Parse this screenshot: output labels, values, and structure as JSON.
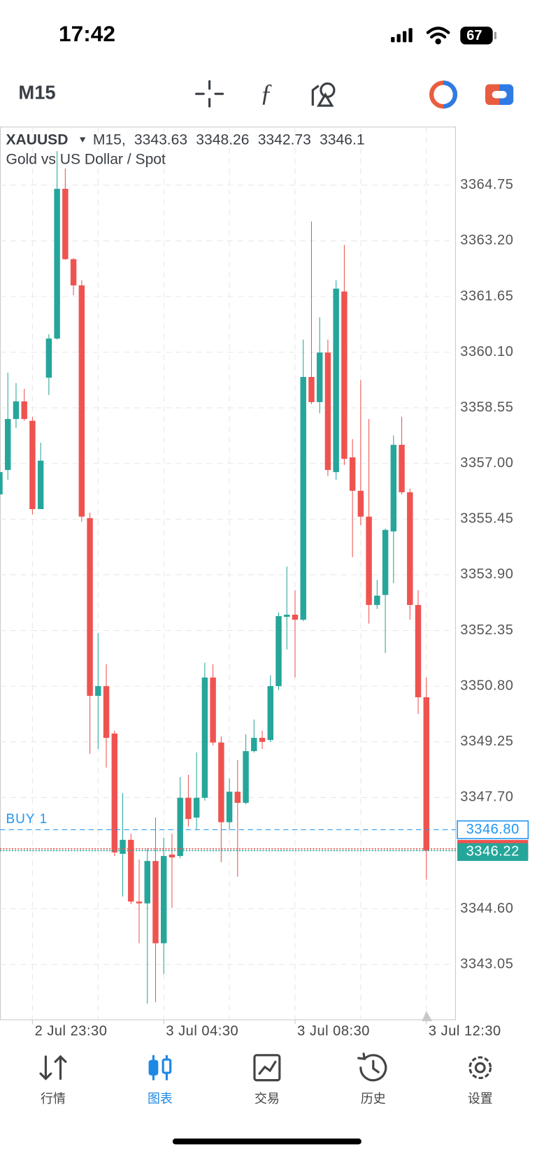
{
  "status_bar": {
    "time": "17:42",
    "battery": "67"
  },
  "toolbar": {
    "timeframe": "M15"
  },
  "chart_data": {
    "type": "candlestick",
    "legend": {
      "symbol": "XAUUSD",
      "timeframe_label": "M15,",
      "ohlc": [
        3343.63,
        3348.26,
        3342.73,
        3346.1
      ],
      "description": "Gold vs US Dollar / Spot"
    },
    "categories": [
      null,
      null,
      null,
      null,
      "2 Jul 23:30",
      null,
      null,
      null,
      null,
      null,
      null,
      null,
      null,
      null,
      null,
      null,
      null,
      null,
      null,
      null,
      "3 Jul 04:30",
      null,
      null,
      null,
      null,
      null,
      null,
      null,
      null,
      null,
      null,
      null,
      null,
      null,
      null,
      null,
      "3 Jul 08:30",
      null,
      null,
      null,
      null,
      null,
      null,
      null,
      null,
      null,
      null,
      null,
      null,
      null,
      null,
      null,
      "3 Jul 12:30"
    ],
    "open": [
      3356.14,
      3356.82,
      3358.24,
      3358.73,
      3358.19,
      3355.73,
      3359.39,
      3360.48,
      3364.65,
      3362.69,
      3361.96,
      3355.48,
      3350.53,
      3350.8,
      3349.48,
      3346.13,
      3346.52,
      3344.8,
      3344.75,
      3345.93,
      3343.64,
      3346.11,
      3346.07,
      3347.69,
      3347.14,
      3347.69,
      3351.04,
      3349.23,
      3347.01,
      3347.86,
      3347.55,
      3348.99,
      3349.36,
      3349.3,
      3350.8,
      3352.73,
      3352.79,
      3352.65,
      3359.41,
      3358.71,
      3360.09,
      3356.76,
      3361.79,
      3357.17,
      3356.24,
      3355.52,
      3353.06,
      3353.34,
      3355.11,
      3357.52,
      3356.2,
      3353.06,
      3350.49
    ],
    "high": [
      3356.96,
      3359.53,
      3359.24,
      3359.08,
      3358.3,
      3357.58,
      3360.6,
      3365.7,
      3365.22,
      3362.72,
      3362.1,
      3355.63,
      3352.28,
      3351.41,
      3349.56,
      3347.82,
      3346.69,
      3345.97,
      3346.28,
      3347.14,
      3346.58,
      3346.69,
      3348.27,
      3348.33,
      3348.95,
      3351.45,
      3351.41,
      3349.4,
      3348.23,
      3348.74,
      3349.46,
      3349.87,
      3349.56,
      3351.1,
      3352.85,
      3354.13,
      3353.47,
      3360.45,
      3363.74,
      3361.07,
      3360.45,
      3362.1,
      3363.09,
      3357.68,
      3359.32,
      3358.24,
      3353.76,
      3355.19,
      3357.78,
      3358.3,
      3356.3,
      3353.47,
      3351.04
    ],
    "low": [
      3356.0,
      3356.55,
      3357.99,
      3358.19,
      3355.58,
      3355.73,
      3358.91,
      3360.45,
      3362.67,
      3361.69,
      3355.38,
      3348.91,
      3349.05,
      3348.53,
      3346.07,
      3344.94,
      3344.73,
      3343.64,
      3341.96,
      3342.0,
      3342.78,
      3344.63,
      3346.01,
      3346.89,
      3346.79,
      3347.61,
      3349.15,
      3345.9,
      3346.79,
      3345.49,
      3347.51,
      3348.95,
      3349.05,
      3349.25,
      3350.69,
      3351.82,
      3351.04,
      3352.61,
      3358.65,
      3358.4,
      3356.65,
      3356.55,
      3356.96,
      3354.39,
      3355.28,
      3352.54,
      3352.95,
      3351.72,
      3353.67,
      3356.14,
      3352.65,
      3350.02,
      3345.41
    ],
    "close": [
      3356.76,
      3358.24,
      3358.73,
      3358.24,
      3355.73,
      3357.08,
      3360.48,
      3364.65,
      3362.69,
      3361.96,
      3355.52,
      3350.53,
      3350.8,
      3349.36,
      3346.17,
      3346.52,
      3344.8,
      3344.75,
      3345.93,
      3343.64,
      3346.07,
      3346.03,
      3347.69,
      3347.1,
      3347.69,
      3351.04,
      3349.23,
      3347.01,
      3347.86,
      3347.55,
      3348.99,
      3349.36,
      3349.25,
      3350.8,
      3352.75,
      3352.79,
      3352.65,
      3359.41,
      3358.71,
      3360.09,
      3356.82,
      3361.87,
      3357.13,
      3356.24,
      3355.52,
      3353.06,
      3353.32,
      3355.15,
      3357.52,
      3356.2,
      3353.06,
      3350.49,
      3346.22
    ],
    "up_color": "#26a69a",
    "down_color": "#ef5350",
    "ylim": [
      3341.51,
      3366.37
    ],
    "yticks": [
      3343.05,
      {
        "value": 3344.6,
        "label": "3344.60"
      },
      {
        "value": 3347.7,
        "label": "3347.70"
      },
      3349.25,
      {
        "value": 3350.8,
        "label": "3350.80"
      },
      3352.35,
      {
        "value": 3353.9,
        "label": "3353.90"
      },
      3355.45,
      {
        "value": 3357,
        "label": "3357.00"
      },
      3358.55,
      {
        "value": 3360.1,
        "label": "3360.10"
      },
      3361.65,
      {
        "value": 3363.2,
        "label": "3363.20"
      },
      3364.75
    ],
    "grid": true,
    "order": {
      "label": "BUY 1",
      "price": 3346.8,
      "price_label": "3346.80",
      "color": "#2196f3"
    },
    "ask": {
      "price": 3346.27,
      "color": "#ef5350"
    },
    "bid": {
      "price": 3346.22,
      "color": "#26a69a"
    }
  },
  "tabs": [
    {
      "label": "行情",
      "active": false
    },
    {
      "label": "图表",
      "active": true
    },
    {
      "label": "交易",
      "active": false
    },
    {
      "label": "历史",
      "active": false
    },
    {
      "label": "设置",
      "active": false
    }
  ]
}
